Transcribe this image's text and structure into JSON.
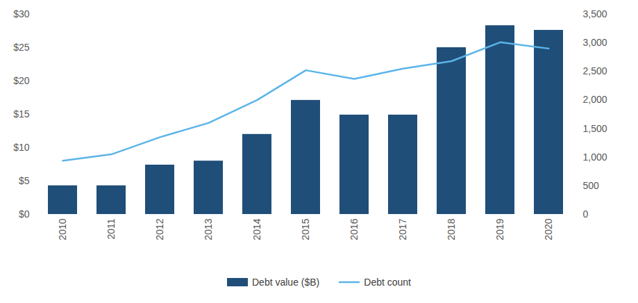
{
  "chart_data": {
    "type": "bar",
    "categories": [
      "2010",
      "2011",
      "2012",
      "2013",
      "2014",
      "2015",
      "2016",
      "2017",
      "2018",
      "2019",
      "2020"
    ],
    "series": [
      {
        "name": "Debt value ($B)",
        "type": "bar",
        "color": "#1f4e79",
        "values": [
          4.3,
          4.3,
          7.4,
          8.0,
          12.0,
          17.1,
          14.9,
          14.9,
          25.0,
          28.3,
          27.6
        ]
      },
      {
        "name": "Debt count",
        "type": "line",
        "axis": "y2",
        "color": "#5bb4e8",
        "values": [
          940,
          1050,
          1350,
          1600,
          2000,
          2520,
          2370,
          2550,
          2680,
          3010,
          2900
        ]
      }
    ],
    "ylim": [
      0,
      30
    ],
    "yticks": [
      {
        "value": 0,
        "label": "$0"
      },
      {
        "value": 5,
        "label": "$5"
      },
      {
        "value": 10,
        "label": "$10"
      },
      {
        "value": 15,
        "label": "$15"
      },
      {
        "value": 20,
        "label": "$20"
      },
      {
        "value": 25,
        "label": "$25"
      },
      {
        "value": 30,
        "label": "$30"
      }
    ],
    "y2lim": [
      0,
      3500
    ],
    "y2ticks": [
      0,
      500,
      {
        "value": 1000,
        "label": "1,000"
      },
      {
        "value": 1500,
        "label": "1,500"
      },
      {
        "value": 2000,
        "label": "2,000"
      },
      {
        "value": 2500,
        "label": "2,500"
      },
      {
        "value": 3000,
        "label": "3,000"
      },
      {
        "value": 3500,
        "label": "3,500"
      }
    ],
    "grid": false,
    "legend": "bottom"
  }
}
